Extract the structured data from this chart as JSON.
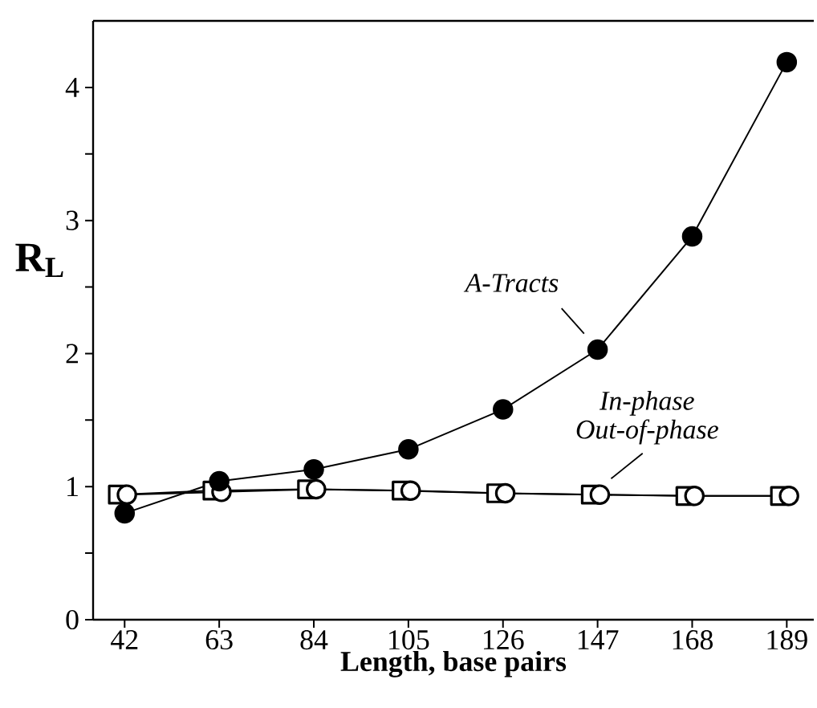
{
  "chart_data": {
    "type": "line",
    "xlabel": "Length, base pairs",
    "ylabel": "R$_{L}$",
    "xlim": [
      35,
      195
    ],
    "xticks": [
      42,
      63,
      84,
      105,
      126,
      147,
      168,
      189
    ],
    "ylim": [
      0,
      4.5
    ],
    "yticks": [
      0,
      {
        "value": 0.5,
        "label": null
      },
      1,
      {
        "value": 1.5,
        "label": null
      },
      2,
      {
        "value": 2.5,
        "label": null
      },
      3,
      {
        "value": 3.5,
        "label": null
      },
      4
    ],
    "grid": false,
    "line_style": "solid",
    "annotations": [
      "A-Tracts",
      "In-phase",
      "Out-of-phase"
    ],
    "series": [
      {
        "color": "#ffffff",
        "marker": "square",
        "x": [
          40.5,
          61.5,
          82.5,
          103.5,
          124.5,
          145.5,
          166.5,
          187.5
        ],
        "values": [
          0.94,
          0.97,
          0.98,
          0.97,
          0.95,
          0.94,
          0.93,
          0.93
        ]
      },
      {
        "color": "#ffffff",
        "marker": "circle",
        "x": [
          42.5,
          63.5,
          84.5,
          105.5,
          126.5,
          147.5,
          168.5,
          189.5
        ],
        "values": [
          0.94,
          0.96,
          0.98,
          0.97,
          0.95,
          0.94,
          0.93,
          0.93
        ]
      },
      {
        "color": "#000000",
        "marker": "circle",
        "x": [
          42,
          63,
          84,
          105,
          126,
          147,
          168,
          189
        ],
        "values": [
          0.8,
          1.04,
          1.13,
          1.28,
          1.58,
          2.03,
          2.88,
          4.19
        ]
      }
    ]
  }
}
